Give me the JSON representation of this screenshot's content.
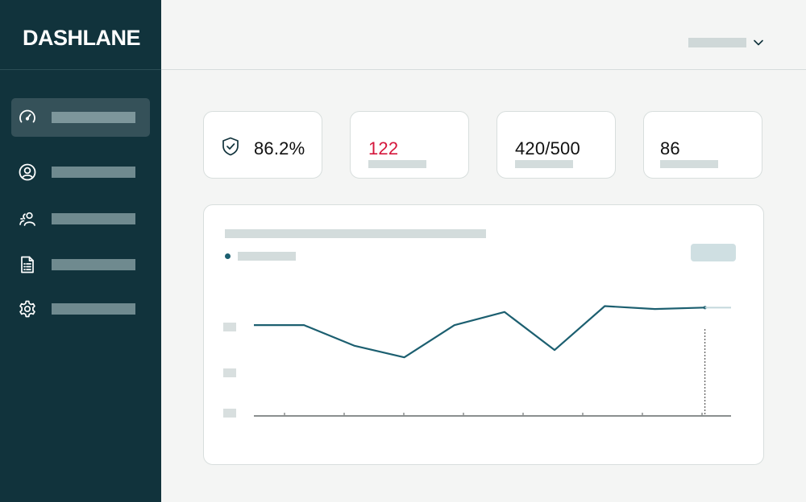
{
  "brand": {
    "logo_text": "DASHLANE",
    "bg_color": "#11333c"
  },
  "sidebar": {
    "items": [
      {
        "icon": "gauge-icon",
        "label": "",
        "active": true
      },
      {
        "icon": "user-circle-icon",
        "label": "",
        "active": false
      },
      {
        "icon": "users-icon",
        "label": "",
        "active": false
      },
      {
        "icon": "document-list-icon",
        "label": "",
        "active": false
      },
      {
        "icon": "gear-icon",
        "label": "",
        "active": false
      }
    ]
  },
  "header": {
    "account_label": "",
    "dropdown_icon": "chevron-down-icon"
  },
  "stats": [
    {
      "icon": "shield-check-icon",
      "value": "86.2%",
      "label": "",
      "color": "#111111"
    },
    {
      "value": "122",
      "label": "",
      "color": "#d5173c"
    },
    {
      "value": "420/500",
      "label": "",
      "color": "#111111"
    },
    {
      "value": "86",
      "label": "",
      "color": "#111111"
    }
  ],
  "chart": {
    "title": "",
    "legend": "",
    "button_label": "",
    "line_color": "#1c5f70"
  },
  "chart_data": {
    "type": "line",
    "title": "",
    "xlabel": "",
    "ylabel": "",
    "x": [
      0,
      1,
      2,
      3,
      4,
      5,
      6,
      7,
      8,
      9
    ],
    "series": [
      {
        "values": [
          62,
          62,
          48,
          40,
          62,
          71,
          45,
          75,
          73,
          74
        ]
      }
    ],
    "ylim": [
      0,
      100
    ],
    "grid": false,
    "highlight_index": 9
  }
}
